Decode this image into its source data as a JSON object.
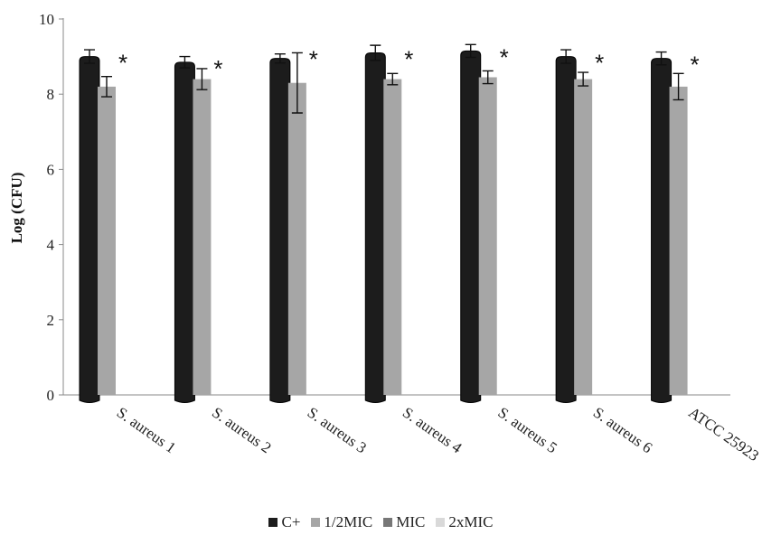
{
  "chart_data": {
    "type": "bar",
    "title": "",
    "xlabel": "",
    "ylabel": "Log (CFU)",
    "ylim": [
      0,
      10
    ],
    "yticks": [
      "0",
      "2",
      "4",
      "6",
      "8",
      "10"
    ],
    "categories": [
      "S. aureus 1",
      "S. aureus 2",
      "S. aureus 3",
      "S. aureus 4",
      "S. aureus 5",
      "S. aureus 6",
      "ATCC 25923"
    ],
    "series": [
      {
        "name": "C+",
        "color": "#1c1c1c",
        "values": [
          9.0,
          8.85,
          8.95,
          9.1,
          9.15,
          9.0,
          8.95
        ],
        "errors": [
          0.18,
          0.15,
          0.12,
          0.2,
          0.17,
          0.18,
          0.17
        ]
      },
      {
        "name": "1/2MIC",
        "color": "#a6a6a6",
        "values": [
          8.2,
          8.4,
          8.3,
          8.4,
          8.45,
          8.4,
          8.2
        ],
        "errors": [
          0.27,
          0.28,
          0.8,
          0.15,
          0.17,
          0.18,
          0.35
        ]
      },
      {
        "name": "MIC",
        "color": "#777777",
        "values": [
          0,
          0,
          0,
          0,
          0,
          0,
          0
        ],
        "errors": [
          0,
          0,
          0,
          0,
          0,
          0,
          0
        ]
      },
      {
        "name": "2xMIC",
        "color": "#d9d9d9",
        "values": [
          0,
          0,
          0,
          0,
          0,
          0,
          0
        ],
        "errors": [
          0,
          0,
          0,
          0,
          0,
          0,
          0
        ]
      }
    ],
    "annotations": [
      "*",
      "*",
      "*",
      "*",
      "*",
      "*",
      "*"
    ],
    "grid": false,
    "legend_position": "bottom"
  }
}
